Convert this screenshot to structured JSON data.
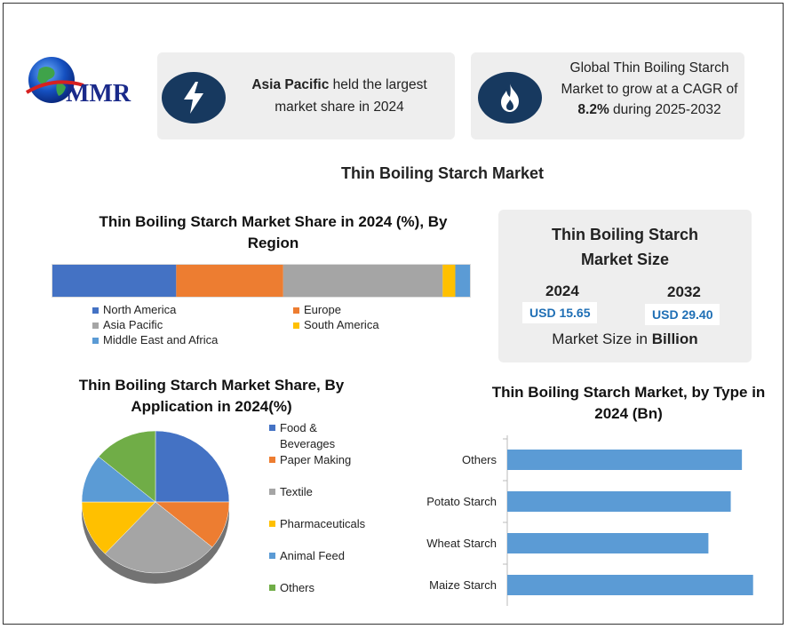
{
  "logo": {
    "text": "MMR"
  },
  "card1": {
    "icon": "lightning-icon",
    "bold": "Asia Pacific",
    "rest": " held the largest market share in 2024"
  },
  "card2": {
    "icon": "flame-icon",
    "line1": "Global Thin Boiling Starch",
    "line2": "Market to grow at a CAGR of",
    "bold": "8.2%",
    "rest": " during 2025-2032"
  },
  "main_title": "Thin Boiling Starch Market",
  "colors": {
    "north_america": "#4472c4",
    "europe": "#ed7d31",
    "asia_pacific": "#a5a5a5",
    "south_america": "#ffc000",
    "mea": "#5b9bd5",
    "others": "#70ad47",
    "icon_bg": "#17395f"
  },
  "region": {
    "title": "Thin Boiling Starch Market Share in 2024 (%), By Region"
  },
  "market_size": {
    "title": "Thin Boiling Starch Market Size",
    "year1": "2024",
    "value1": "USD 15.65",
    "year2": "2032",
    "value2": "USD 29.40",
    "note_prefix": "Market Size in ",
    "note_bold": "Billion"
  },
  "application": {
    "title": "Thin Boiling Starch Market Share, By Application in 2024(%)"
  },
  "type": {
    "title": "Thin Boiling Starch Market, by Type in 2024 (Bn)"
  },
  "chart_data": [
    {
      "type": "bar",
      "orientation": "stacked-horizontal",
      "title": "Thin Boiling Starch Market Share in 2024 (%), By Region",
      "categories": [
        "North America",
        "Europe",
        "Asia Pacific",
        "South America",
        "Middle East and Africa"
      ],
      "values": [
        29.5,
        25.5,
        38,
        3,
        3.5
      ]
    },
    {
      "type": "pie",
      "title": "Thin Boiling Starch Market Share, By Application in 2024(%)",
      "categories": [
        "Food & Beverages",
        "Paper Making",
        "Textile",
        "Pharmaceuticals",
        "Animal Feed",
        "Others"
      ],
      "values": [
        25,
        11,
        26,
        13,
        11,
        14
      ]
    },
    {
      "type": "bar",
      "orientation": "horizontal",
      "title": "Thin Boiling Starch Market, by Type in 2024 (Bn)",
      "categories": [
        "Maize Starch",
        "Wheat Starch",
        "Potato Starch",
        "Others"
      ],
      "values": [
        4.4,
        3.6,
        4.0,
        4.2
      ],
      "xlim": [
        0,
        4.5
      ],
      "grid": false
    }
  ]
}
